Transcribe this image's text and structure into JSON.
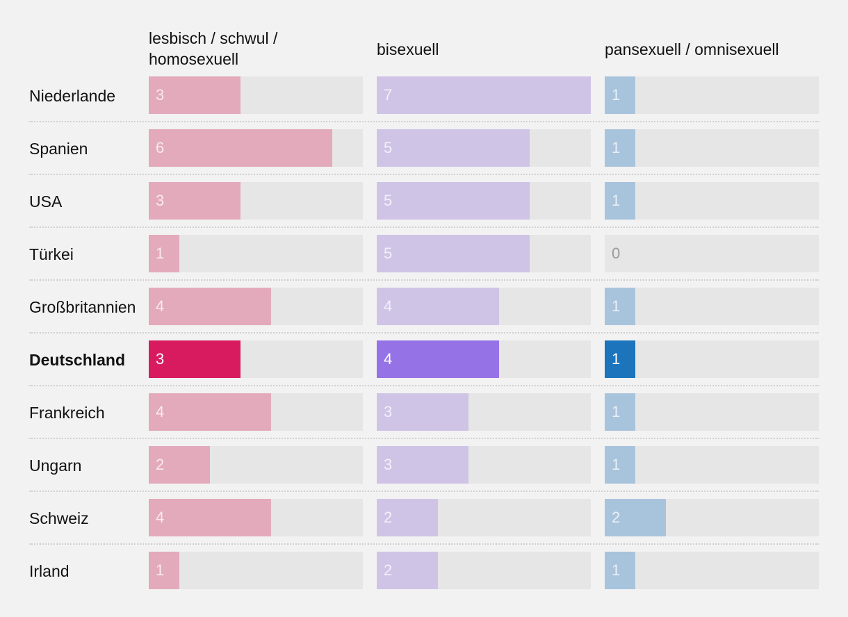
{
  "chart_data": {
    "type": "bar",
    "title": "",
    "xlim": [
      0,
      7
    ],
    "highlight_category": "Deutschland",
    "categories": [
      "Niederlande",
      "Spanien",
      "USA",
      "Türkei",
      "Großbritannien",
      "Deutschland",
      "Frankreich",
      "Ungarn",
      "Schweiz",
      "Irland"
    ],
    "series": [
      {
        "name": "lesbisch / schwul / homosexuell",
        "name_lines": [
          "lesbisch / schwul /",
          "homosexuell"
        ],
        "color": "#e3aabc",
        "highlight_color": "#d81b5f",
        "values": [
          3,
          6,
          3,
          1,
          4,
          3,
          4,
          2,
          4,
          1
        ]
      },
      {
        "name": "bisexuell",
        "name_lines": [
          "bisexuell"
        ],
        "color": "#cfc4e6",
        "highlight_color": "#9573e6",
        "values": [
          7,
          5,
          5,
          5,
          4,
          4,
          3,
          3,
          2,
          2
        ]
      },
      {
        "name": "pansexuell / omnisexuell",
        "name_lines": [
          "pansexuell / omnisexuell"
        ],
        "color": "#a8c4dc",
        "highlight_color": "#1c74bc",
        "values": [
          1,
          1,
          1,
          0,
          1,
          1,
          1,
          1,
          2,
          1
        ]
      }
    ]
  }
}
